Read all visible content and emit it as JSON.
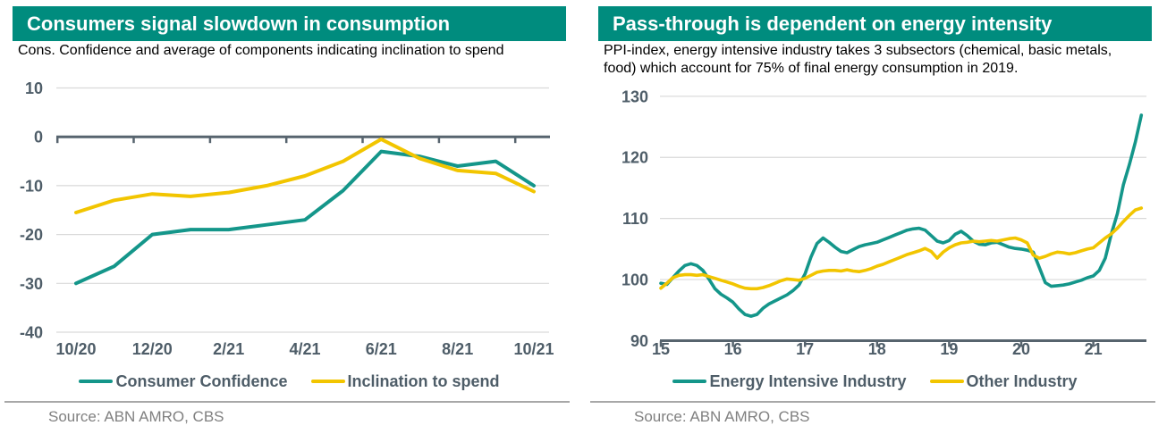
{
  "colors": {
    "header_bg": "#008C7E",
    "header_text": "#FFFFFF",
    "teal_line": "#14968A",
    "yellow_line": "#F2C500",
    "axis_dark": "#57646E",
    "tick_label": "#4E5D68",
    "grid": "#D9D9D9",
    "subtitle_text": "#000000",
    "legend_text": "#4E5D68",
    "source_text": "#808080",
    "divider": "#A8A8A8"
  },
  "panels": [
    {
      "source": "Source: ABN AMRO, CBS"
    },
    {
      "source": "Source: ABN AMRO, CBS"
    }
  ],
  "chart_data": [
    {
      "type": "line",
      "title": "Consumers signal slowdown in consumption",
      "subtitle": "Cons. Confidence and average of components indicating inclination to spend",
      "categories": [
        "10/20",
        "11/20",
        "12/20",
        "1/21",
        "2/21",
        "3/21",
        "4/21",
        "5/21",
        "6/21",
        "7/21",
        "8/21",
        "9/21",
        "10/21"
      ],
      "x_tick_labels": [
        "10/20",
        "12/20",
        "2/21",
        "4/21",
        "6/21",
        "8/21",
        "10/21"
      ],
      "ylim": [
        -40,
        10
      ],
      "yticks": [
        10,
        0,
        -10,
        -20,
        -30,
        -40
      ],
      "grid": true,
      "legend_position": "bottom",
      "series": [
        {
          "name": "Consumer Confidence",
          "color": "teal",
          "values": [
            -30,
            -26.5,
            -20,
            -19,
            -19,
            -18,
            -17,
            -11,
            -3,
            -4,
            -6,
            -5,
            -10
          ]
        },
        {
          "name": "Inclination to spend",
          "color": "yellow",
          "values": [
            -15.5,
            -13,
            -11.7,
            -12.2,
            -11.4,
            -10,
            -8,
            -5,
            -0.5,
            -4.4,
            -6.9,
            -7.5,
            -11.2
          ]
        }
      ]
    },
    {
      "type": "line",
      "title": "Pass-through is dependent on energy intensity",
      "subtitle": "PPI-index, energy intensive industry takes 3 subsectors (chemical, basic metals, food) which account for 75% of final energy consumption in 2019.",
      "x_start_year": 2015,
      "x_step_months": 1,
      "x_tick_labels": [
        "15",
        "16",
        "17",
        "18",
        "19",
        "20",
        "21"
      ],
      "ylim": [
        90,
        130
      ],
      "yticks": [
        90,
        100,
        110,
        120,
        130
      ],
      "grid": true,
      "legend_position": "bottom",
      "series": [
        {
          "name": "Energy Intensive Industry",
          "color": "teal",
          "values": [
            99.4,
            99.2,
            100.3,
            101.4,
            102.3,
            102.6,
            102.3,
            101.5,
            100.1,
            98.5,
            97.6,
            97.0,
            96.3,
            95.2,
            94.3,
            94.0,
            94.3,
            95.3,
            96.0,
            96.5,
            97.0,
            97.5,
            98.2,
            99.1,
            100.9,
            103.7,
            105.9,
            106.8,
            106.1,
            105.3,
            104.6,
            104.4,
            104.9,
            105.4,
            105.7,
            105.9,
            106.1,
            106.5,
            106.9,
            107.3,
            107.7,
            108.1,
            108.3,
            108.4,
            108.1,
            107.2,
            106.3,
            106.0,
            106.4,
            107.4,
            107.9,
            107.2,
            106.3,
            105.8,
            105.7,
            106.0,
            106.1,
            105.7,
            105.3,
            105.1,
            105.0,
            104.8,
            104.5,
            102.0,
            99.5,
            98.9,
            99.0,
            99.1,
            99.3,
            99.6,
            99.9,
            100.3,
            100.6,
            101.5,
            103.5,
            107.5,
            110.8,
            115.5,
            118.8,
            122.5,
            126.9
          ]
        },
        {
          "name": "Other Industry",
          "color": "yellow",
          "values": [
            98.6,
            99.4,
            100.3,
            100.7,
            100.8,
            100.8,
            100.7,
            100.8,
            100.5,
            100.2,
            99.9,
            99.6,
            99.3,
            98.9,
            98.6,
            98.5,
            98.5,
            98.7,
            99.0,
            99.4,
            99.8,
            100.1,
            100.0,
            99.9,
            100.2,
            100.7,
            101.2,
            101.4,
            101.5,
            101.5,
            101.4,
            101.6,
            101.4,
            101.3,
            101.5,
            101.8,
            102.2,
            102.5,
            102.9,
            103.3,
            103.7,
            104.1,
            104.4,
            104.7,
            105.1,
            104.6,
            103.5,
            104.5,
            105.2,
            105.7,
            106.0,
            106.1,
            106.3,
            106.2,
            106.3,
            106.4,
            106.3,
            106.5,
            106.7,
            106.8,
            106.5,
            106.0,
            104.0,
            103.5,
            103.8,
            104.2,
            104.5,
            104.4,
            104.2,
            104.4,
            104.7,
            105.0,
            105.2,
            106.0,
            106.8,
            107.5,
            108.4,
            109.5,
            110.5,
            111.4,
            111.7
          ]
        }
      ]
    }
  ]
}
